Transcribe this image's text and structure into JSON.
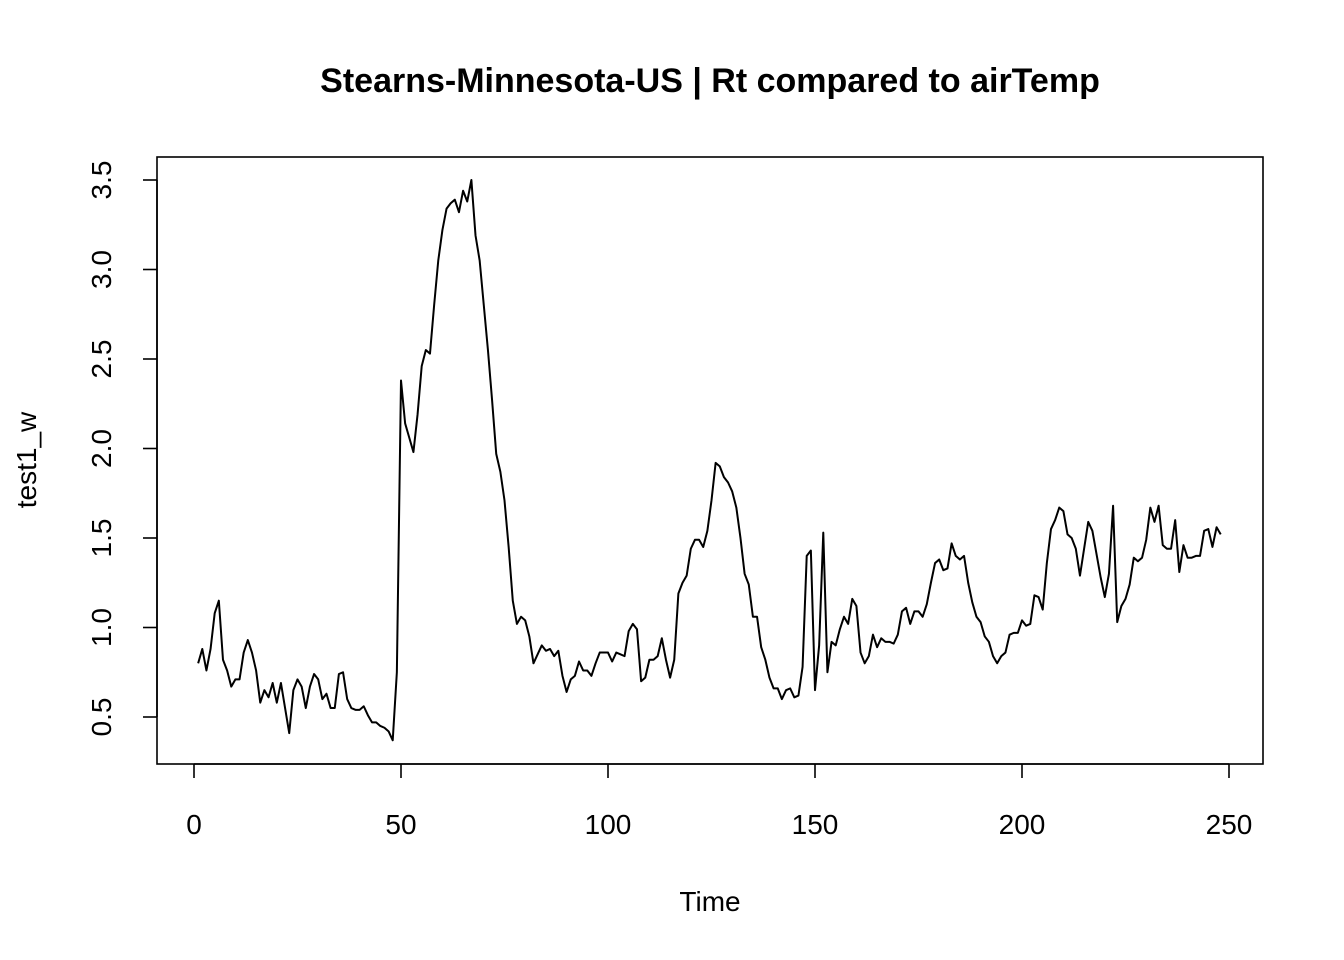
{
  "chart_data": {
    "type": "line",
    "title": "Stearns-Minnesota-US | Rt compared to airTemp",
    "xlabel": "Time",
    "ylabel": "test1_w",
    "xlim": [
      1,
      248
    ],
    "ylim": [
      0.37,
      3.5
    ],
    "x_ticks": [
      0,
      50,
      100,
      150,
      200,
      250
    ],
    "y_ticks": [
      0.5,
      1.0,
      1.5,
      2.0,
      2.5,
      3.0,
      3.5
    ],
    "x_tick_labels": [
      "0",
      "50",
      "100",
      "150",
      "200",
      "250"
    ],
    "y_tick_labels": [
      "0.5",
      "1.0",
      "1.5",
      "2.0",
      "2.5",
      "3.0",
      "3.5"
    ],
    "grid": false,
    "legend": "none",
    "series": [
      {
        "color": "#000000",
        "values": [
          0.8,
          0.88,
          0.76,
          0.88,
          1.08,
          1.15,
          0.82,
          0.76,
          0.67,
          0.71,
          0.71,
          0.86,
          0.93,
          0.86,
          0.76,
          0.58,
          0.65,
          0.61,
          0.69,
          0.58,
          0.69,
          0.55,
          0.41,
          0.65,
          0.71,
          0.67,
          0.55,
          0.67,
          0.74,
          0.71,
          0.6,
          0.63,
          0.55,
          0.55,
          0.74,
          0.75,
          0.6,
          0.55,
          0.54,
          0.54,
          0.56,
          0.51,
          0.47,
          0.47,
          0.45,
          0.44,
          0.42,
          0.37,
          0.75,
          2.38,
          2.14,
          2.06,
          1.98,
          2.19,
          2.46,
          2.55,
          2.53,
          2.8,
          3.05,
          3.22,
          3.34,
          3.37,
          3.39,
          3.32,
          3.44,
          3.38,
          3.5,
          3.19,
          3.05,
          2.8,
          2.55,
          2.27,
          1.97,
          1.87,
          1.71,
          1.45,
          1.15,
          1.02,
          1.06,
          1.04,
          0.95,
          0.8,
          0.85,
          0.9,
          0.87,
          0.88,
          0.84,
          0.87,
          0.73,
          0.64,
          0.71,
          0.73,
          0.81,
          0.76,
          0.76,
          0.73,
          0.8,
          0.86,
          0.86,
          0.86,
          0.81,
          0.86,
          0.85,
          0.84,
          0.98,
          1.02,
          0.99,
          0.7,
          0.72,
          0.82,
          0.82,
          0.84,
          0.94,
          0.82,
          0.72,
          0.82,
          1.19,
          1.25,
          1.29,
          1.44,
          1.49,
          1.49,
          1.45,
          1.54,
          1.71,
          1.92,
          1.9,
          1.84,
          1.81,
          1.76,
          1.67,
          1.5,
          1.3,
          1.24,
          1.06,
          1.06,
          0.89,
          0.82,
          0.72,
          0.66,
          0.66,
          0.6,
          0.65,
          0.66,
          0.61,
          0.62,
          0.78,
          1.4,
          1.43,
          0.65,
          0.9,
          1.53,
          0.75,
          0.92,
          0.9,
          0.99,
          1.06,
          1.02,
          1.16,
          1.12,
          0.86,
          0.8,
          0.84,
          0.96,
          0.89,
          0.94,
          0.92,
          0.92,
          0.91,
          0.96,
          1.09,
          1.11,
          1.02,
          1.09,
          1.09,
          1.06,
          1.13,
          1.25,
          1.36,
          1.38,
          1.32,
          1.33,
          1.47,
          1.4,
          1.38,
          1.4,
          1.25,
          1.14,
          1.06,
          1.03,
          0.95,
          0.92,
          0.84,
          0.8,
          0.84,
          0.86,
          0.96,
          0.97,
          0.97,
          1.04,
          1.01,
          1.02,
          1.18,
          1.17,
          1.1,
          1.36,
          1.55,
          1.6,
          1.67,
          1.65,
          1.52,
          1.5,
          1.44,
          1.29,
          1.44,
          1.59,
          1.54,
          1.41,
          1.28,
          1.17,
          1.3,
          1.68,
          1.03,
          1.12,
          1.16,
          1.24,
          1.39,
          1.37,
          1.39,
          1.49,
          1.67,
          1.59,
          1.68,
          1.46,
          1.44,
          1.44,
          1.6,
          1.31,
          1.46,
          1.39,
          1.39,
          1.4,
          1.4,
          1.54,
          1.55,
          1.45,
          1.56,
          1.52
        ]
      }
    ]
  }
}
